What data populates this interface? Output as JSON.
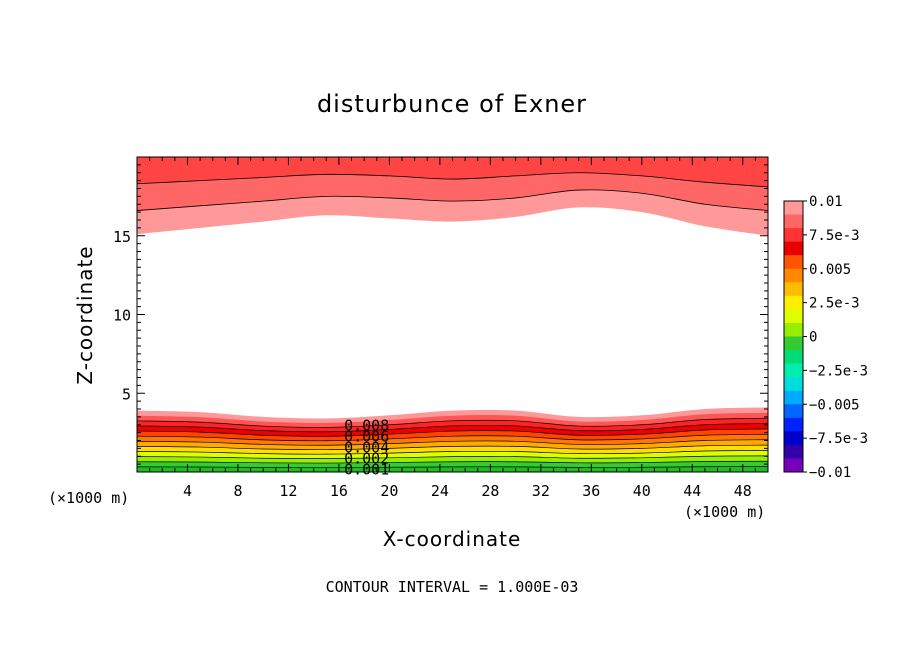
{
  "chart_data": {
    "type": "contour",
    "title": "disturbunce of Exner",
    "xlabel": "X-coordinate",
    "ylabel": "Z-coordinate",
    "x_unit_left": "(×1000 m)",
    "x_unit_right": "(×1000 m)",
    "xlim": [
      0,
      50
    ],
    "ylim": [
      0,
      20
    ],
    "xticks": [
      4,
      8,
      12,
      16,
      20,
      24,
      28,
      32,
      36,
      40,
      44,
      48
    ],
    "xtick_labels": [
      "4",
      "8",
      "12",
      "16",
      "20",
      "24",
      "28",
      "32",
      "36",
      "40",
      "44",
      "48"
    ],
    "yticks": [
      5,
      10,
      15
    ],
    "ytick_labels": [
      "5",
      "10",
      "15"
    ],
    "footer": "CONTOUR INTERVAL = 1.000E-03",
    "contour_labels": [
      "0.008",
      "0.006",
      "0.004",
      "0.002",
      "0.001"
    ],
    "colorbar": {
      "labels": [
        "0.01",
        "7.5e-3",
        "0.005",
        "2.5e-3",
        "0",
        "−2.5e-3",
        "−0.005",
        "−7.5e-3",
        "−0.01"
      ],
      "colors": [
        "#ff9999",
        "#ff6666",
        "#ff3333",
        "#e60000",
        "#ff5500",
        "#ff8800",
        "#ffbb00",
        "#ffee00",
        "#ddff00",
        "#99ee00",
        "#33cc33",
        "#00dd77",
        "#00eeaa",
        "#00dddd",
        "#00aaff",
        "#0066ff",
        "#0022ff",
        "#0000cc",
        "#3300aa",
        "#7700bb"
      ],
      "min": -0.01,
      "max": 0.01
    },
    "top_band_boundaries_z": {
      "x": [
        0,
        5,
        10,
        15,
        20,
        25,
        30,
        35,
        40,
        45,
        50
      ],
      "z_0.008": [
        15.1,
        15.5,
        15.9,
        16.3,
        16.1,
        15.9,
        16.2,
        16.8,
        16.5,
        15.6,
        15.0
      ],
      "z_0.009": [
        16.6,
        16.9,
        17.2,
        17.5,
        17.4,
        17.2,
        17.4,
        17.9,
        17.7,
        17.0,
        16.6
      ],
      "z_0.010": [
        18.3,
        18.5,
        18.7,
        18.9,
        18.8,
        18.6,
        18.8,
        19.0,
        18.8,
        18.4,
        18.1
      ]
    },
    "bottom_band_boundaries_z": {
      "x": [
        0,
        5,
        10,
        15,
        20,
        25,
        30,
        35,
        40,
        45,
        50
      ],
      "levels": [
        0.001,
        0.002,
        0.003,
        0.004,
        0.005,
        0.006,
        0.007,
        0.008
      ],
      "z_base": [
        3.9,
        3.8,
        3.5,
        3.4,
        3.6,
        3.9,
        3.9,
        3.5,
        3.6,
        4.0,
        4.1
      ]
    }
  }
}
